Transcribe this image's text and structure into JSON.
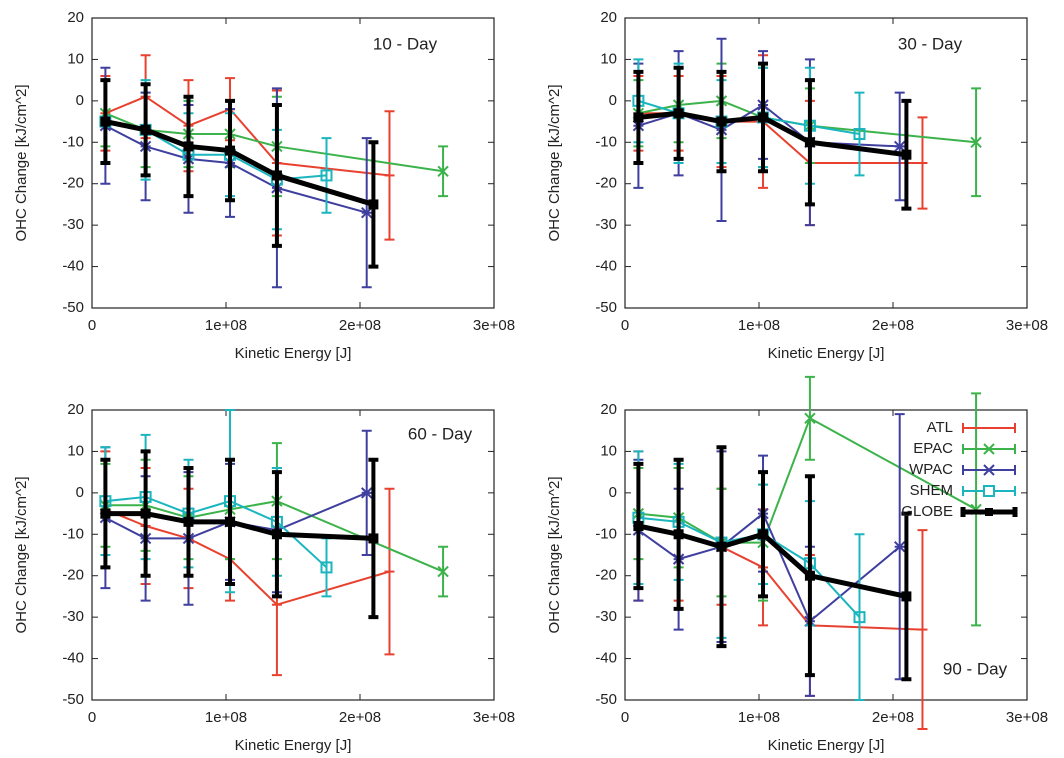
{
  "chart_data": [
    {
      "type": "line",
      "annotation": "10 - Day",
      "xlabel": "Kinetic Energy [J]",
      "ylabel": "OHC Change [kJ/cm^2]",
      "xlim": [
        0,
        300000000
      ],
      "xticks": [
        0,
        {
          "value": 100000000,
          "label": "1e+08"
        },
        {
          "value": 200000000,
          "label": "2e+08"
        },
        {
          "value": 300000000,
          "label": "3e+08"
        }
      ],
      "ylim": [
        -50,
        20
      ],
      "yticks": [
        -50,
        -40,
        -30,
        -20,
        -10,
        0,
        10,
        20
      ],
      "series": [
        {
          "color": "#e8412f",
          "marker": "plus",
          "x": [
            10000000,
            40000000,
            72000000,
            103000000,
            138000000,
            222000000
          ],
          "values": [
            -3,
            1,
            -6,
            -2,
            -15,
            -18
          ],
          "errors": [
            9,
            10,
            11,
            7.5,
            17.5,
            15.5
          ]
        },
        {
          "color": "#3cb34a",
          "marker": "x",
          "x": [
            10000000,
            40000000,
            72000000,
            103000000,
            138000000,
            262000000
          ],
          "values": [
            -3,
            -7,
            -8,
            -8,
            -11,
            -17
          ],
          "errors": [
            8,
            9,
            8,
            8,
            12,
            6
          ]
        },
        {
          "color": "#3f3f9f",
          "marker": "star",
          "x": [
            10000000,
            40000000,
            72000000,
            103000000,
            138000000,
            205000000
          ],
          "values": [
            -6,
            -11,
            -14,
            -15,
            -21,
            -27
          ],
          "errors": [
            14,
            13,
            13,
            13,
            24,
            18
          ]
        },
        {
          "color": "#1bb5bf",
          "marker": "square",
          "x": [
            10000000,
            40000000,
            72000000,
            103000000,
            138000000,
            175000000
          ],
          "values": [
            -5,
            -7,
            -13,
            -13,
            -19,
            -18
          ],
          "errors": [
            10,
            12,
            10,
            10,
            12,
            9
          ]
        },
        {
          "color": "#000000",
          "marker": "filled-square",
          "x": [
            10000000,
            40000000,
            72000000,
            103000000,
            138000000,
            210000000
          ],
          "values": [
            -5,
            -7,
            -11,
            -12,
            -18,
            -25
          ],
          "errors": [
            10,
            11,
            12,
            12,
            17,
            15
          ]
        }
      ]
    },
    {
      "type": "line",
      "annotation": "30 - Day",
      "xlabel": "Kinetic Energy [J]",
      "ylabel": "OHC Change [kJ/cm^2]",
      "xlim": [
        0,
        300000000
      ],
      "xticks": [
        0,
        {
          "value": 100000000,
          "label": "1e+08"
        },
        {
          "value": 200000000,
          "label": "2e+08"
        },
        {
          "value": 300000000,
          "label": "3e+08"
        }
      ],
      "ylim": [
        -50,
        20
      ],
      "yticks": [
        -50,
        -40,
        -30,
        -20,
        -10,
        0,
        10,
        20
      ],
      "series": [
        {
          "color": "#e8412f",
          "marker": "plus",
          "x": [
            10000000,
            40000000,
            72000000,
            103000000,
            138000000,
            222000000
          ],
          "values": [
            -3,
            -3,
            -5,
            -5,
            -15,
            -15
          ],
          "errors": [
            9,
            9,
            11,
            16,
            15,
            11
          ]
        },
        {
          "color": "#3cb34a",
          "marker": "x",
          "x": [
            10000000,
            40000000,
            72000000,
            103000000,
            138000000,
            262000000
          ],
          "values": [
            -3,
            -1,
            0,
            -4,
            -6,
            -10
          ],
          "errors": [
            8,
            9,
            9,
            12,
            9,
            13
          ]
        },
        {
          "color": "#3f3f9f",
          "marker": "star",
          "x": [
            10000000,
            40000000,
            72000000,
            103000000,
            138000000,
            205000000
          ],
          "values": [
            -6,
            -3,
            -7,
            -1,
            -10,
            -11
          ],
          "errors": [
            15,
            15,
            22,
            13,
            20,
            13
          ]
        },
        {
          "color": "#1bb5bf",
          "marker": "square",
          "x": [
            10000000,
            40000000,
            72000000,
            103000000,
            138000000,
            175000000
          ],
          "values": [
            0,
            -3,
            -5,
            -4,
            -6,
            -8
          ],
          "errors": [
            10,
            12,
            10,
            12,
            14,
            10
          ]
        },
        {
          "color": "#000000",
          "marker": "filled-square",
          "x": [
            10000000,
            40000000,
            72000000,
            103000000,
            138000000,
            210000000
          ],
          "values": [
            -4,
            -3,
            -5,
            -4,
            -10,
            -13
          ],
          "errors": [
            11,
            11,
            12,
            13,
            15,
            13
          ]
        }
      ]
    },
    {
      "type": "line",
      "annotation": "60 - Day",
      "xlabel": "Kinetic Energy [J]",
      "ylabel": "OHC Change [kJ/cm^2]",
      "xlim": [
        0,
        300000000
      ],
      "xticks": [
        0,
        {
          "value": 100000000,
          "label": "1e+08"
        },
        {
          "value": 200000000,
          "label": "2e+08"
        },
        {
          "value": 300000000,
          "label": "3e+08"
        }
      ],
      "ylim": [
        -50,
        20
      ],
      "yticks": [
        -50,
        -40,
        -30,
        -20,
        -10,
        0,
        10,
        20
      ],
      "series": [
        {
          "color": "#e8412f",
          "marker": "plus",
          "x": [
            10000000,
            40000000,
            72000000,
            103000000,
            138000000,
            222000000
          ],
          "values": [
            -4,
            -8,
            -11,
            -16,
            -27,
            -19
          ],
          "errors": [
            14,
            14,
            12,
            10,
            17,
            20
          ]
        },
        {
          "color": "#3cb34a",
          "marker": "x",
          "x": [
            10000000,
            40000000,
            72000000,
            103000000,
            138000000,
            262000000
          ],
          "values": [
            -3,
            -3,
            -6,
            -4,
            -2,
            -19
          ],
          "errors": [
            10,
            11,
            10,
            12,
            14,
            6
          ]
        },
        {
          "color": "#3f3f9f",
          "marker": "star",
          "x": [
            10000000,
            40000000,
            72000000,
            103000000,
            138000000,
            205000000
          ],
          "values": [
            -6,
            -11,
            -11,
            -7,
            -9,
            0
          ],
          "errors": [
            17,
            15,
            16,
            14,
            15,
            15
          ]
        },
        {
          "color": "#1bb5bf",
          "marker": "square",
          "x": [
            10000000,
            40000000,
            72000000,
            103000000,
            138000000,
            175000000
          ],
          "values": [
            -2,
            -1,
            -5,
            -2,
            -7,
            -18
          ],
          "errors": [
            13,
            15,
            13,
            22,
            13,
            7
          ]
        },
        {
          "color": "#000000",
          "marker": "filled-square",
          "x": [
            10000000,
            40000000,
            72000000,
            103000000,
            138000000,
            210000000
          ],
          "values": [
            -5,
            -5,
            -7,
            -7,
            -10,
            -11
          ],
          "errors": [
            13,
            15,
            13,
            15,
            15,
            19
          ]
        }
      ]
    },
    {
      "type": "line",
      "annotation": "90 - Day",
      "xlabel": "Kinetic Energy [J]",
      "ylabel": "OHC Change [kJ/cm^2]",
      "xlim": [
        0,
        300000000
      ],
      "xticks": [
        0,
        {
          "value": 100000000,
          "label": "1e+08"
        },
        {
          "value": 200000000,
          "label": "2e+08"
        },
        {
          "value": 300000000,
          "label": "3e+08"
        }
      ],
      "ylim": [
        -50,
        20
      ],
      "yticks": [
        -50,
        -40,
        -30,
        -20,
        -10,
        0,
        10,
        20
      ],
      "legend": "upper right",
      "series": [
        {
          "name": "ATL",
          "color": "#e8412f",
          "marker": "plus",
          "x": [
            10000000,
            40000000,
            72000000,
            103000000,
            138000000,
            222000000
          ],
          "values": [
            -8,
            -10,
            -13,
            -18,
            -32,
            -33
          ],
          "errors": [
            18,
            16,
            14,
            14,
            17,
            24
          ]
        },
        {
          "name": "EPAC",
          "color": "#3cb34a",
          "marker": "x",
          "x": [
            10000000,
            40000000,
            72000000,
            103000000,
            138000000,
            262000000
          ],
          "values": [
            -5,
            -6,
            -12,
            -12,
            18,
            -4
          ],
          "errors": [
            11,
            12,
            13,
            14,
            10,
            28
          ]
        },
        {
          "name": "WPAC",
          "color": "#3f3f9f",
          "marker": "star",
          "x": [
            10000000,
            40000000,
            72000000,
            103000000,
            138000000,
            205000000
          ],
          "values": [
            -9,
            -16,
            -13,
            -5,
            -31,
            -13
          ],
          "errors": [
            17,
            17,
            23,
            14,
            18,
            32
          ]
        },
        {
          "name": "SHEM",
          "color": "#1bb5bf",
          "marker": "square",
          "x": [
            10000000,
            40000000,
            72000000,
            103000000,
            138000000,
            175000000
          ],
          "values": [
            -6,
            -7,
            -12,
            -10,
            -17,
            -30
          ],
          "errors": [
            16,
            14,
            23,
            12,
            15,
            20
          ]
        },
        {
          "name": "GLOBE",
          "color": "#000000",
          "marker": "filled-square",
          "x": [
            10000000,
            40000000,
            72000000,
            103000000,
            138000000,
            210000000
          ],
          "values": [
            -8,
            -10,
            -13,
            -10,
            -20,
            -25
          ],
          "errors": [
            15,
            18,
            24,
            15,
            24,
            20
          ]
        }
      ]
    }
  ]
}
